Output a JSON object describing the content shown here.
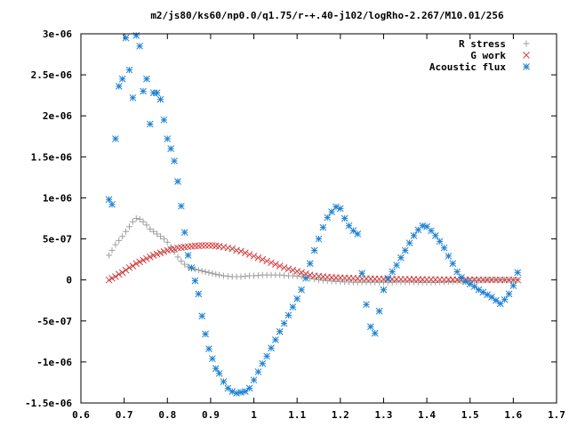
{
  "chart_data": {
    "type": "scatter",
    "title": "m2/js80/ks60/np0.0/q1.75/r-+.40-j102/logRho-2.267/M10.01/256",
    "xlabel": "",
    "ylabel": "",
    "xlim": [
      0.6,
      1.7
    ],
    "ylim": [
      -1.5e-06,
      3e-06
    ],
    "grid": false,
    "legend_placement": "top-right",
    "x_ticks": [
      0.6,
      0.7,
      0.8,
      0.9,
      1.0,
      1.1,
      1.2,
      1.3,
      1.4,
      1.5,
      1.6,
      1.7
    ],
    "x_tick_labels": [
      "0.6",
      "0.7",
      "0.8",
      "0.9",
      "1",
      "1.1",
      "1.2",
      "1.3",
      "1.4",
      "1.5",
      "1.6",
      "1.7"
    ],
    "y_ticks": [
      -1.5e-06,
      -1e-06,
      -5e-07,
      0,
      5e-07,
      1e-06,
      1.5e-06,
      2e-06,
      2.5e-06,
      3e-06
    ],
    "y_tick_labels": [
      "-1.5e-06",
      "-1e-06",
      "-5e-07",
      "0",
      "5e-07",
      "1e-06",
      "1.5e-06",
      "2e-06",
      "2.5e-06",
      "3e-06"
    ],
    "series": [
      {
        "name": "R stress",
        "marker": "plus",
        "color": "#a0a0a0",
        "x": [
          0.665,
          0.672,
          0.68,
          0.688,
          0.696,
          0.704,
          0.712,
          0.72,
          0.728,
          0.736,
          0.744,
          0.752,
          0.76,
          0.768,
          0.776,
          0.784,
          0.792,
          0.8,
          0.808,
          0.816,
          0.824,
          0.832,
          0.84,
          0.848,
          0.856,
          0.864,
          0.872,
          0.88,
          0.888,
          0.896,
          0.904,
          0.912,
          0.92,
          0.93,
          0.94,
          0.95,
          0.96,
          0.97,
          0.98,
          0.99,
          1.0,
          1.01,
          1.02,
          1.03,
          1.04,
          1.05,
          1.06,
          1.07,
          1.08,
          1.09,
          1.1,
          1.11,
          1.12,
          1.13,
          1.14,
          1.15,
          1.16,
          1.17,
          1.18,
          1.19,
          1.2,
          1.21,
          1.22,
          1.23,
          1.24,
          1.25,
          1.26,
          1.27,
          1.28,
          1.29,
          1.3,
          1.31,
          1.32,
          1.33,
          1.34,
          1.35,
          1.36,
          1.37,
          1.38,
          1.39,
          1.4,
          1.41,
          1.42,
          1.43,
          1.44,
          1.45,
          1.46,
          1.47,
          1.48,
          1.49,
          1.5,
          1.51,
          1.52,
          1.53,
          1.54,
          1.55,
          1.56,
          1.57,
          1.58,
          1.59,
          1.6,
          1.61
        ],
        "y": [
          3e-07,
          3.6e-07,
          4.3e-07,
          4.8e-07,
          5.3e-07,
          5.9e-07,
          6.5e-07,
          7.1e-07,
          7.5e-07,
          7.4e-07,
          7.1e-07,
          6.7e-07,
          6.2e-07,
          5.9e-07,
          5.6e-07,
          5.3e-07,
          5e-07,
          4.6e-07,
          4e-07,
          3.4e-07,
          2.8e-07,
          2.3e-07,
          1.9e-07,
          1.6e-07,
          1.4e-07,
          1.3e-07,
          1.2e-07,
          1.1e-07,
          1e-07,
          9e-08,
          8e-08,
          7e-08,
          6e-08,
          5e-08,
          4.5e-08,
          4e-08,
          4e-08,
          4e-08,
          4.5e-08,
          5e-08,
          5e-08,
          5.5e-08,
          6e-08,
          6e-08,
          6e-08,
          6e-08,
          6e-08,
          5.5e-08,
          5e-08,
          5e-08,
          4.5e-08,
          4e-08,
          3e-08,
          2e-08,
          1e-08,
          0.0,
          -5e-09,
          -1e-08,
          -1.5e-08,
          -2e-08,
          -2e-08,
          -2.5e-08,
          -2.5e-08,
          -3e-08,
          -3e-08,
          -3e-08,
          -3e-08,
          -3e-08,
          -3e-08,
          -3e-08,
          -3e-08,
          -3e-08,
          -3e-08,
          -2.5e-08,
          -2.5e-08,
          -2.5e-08,
          -2.5e-08,
          -2.5e-08,
          -3e-08,
          -3e-08,
          -3e-08,
          -3e-08,
          -3e-08,
          -2.5e-08,
          -2.5e-08,
          -2e-08,
          -2e-08,
          -1.5e-08,
          -1.5e-08,
          -1e-08,
          -1e-08,
          -5e-09,
          -5e-09,
          -5e-09,
          0.0,
          0.0,
          0.0,
          0.0,
          0.0,
          0.0,
          0.0,
          0.0
        ]
      },
      {
        "name": "G work",
        "marker": "cross",
        "color": "#d04040",
        "x": [
          0.665,
          0.672,
          0.68,
          0.688,
          0.696,
          0.704,
          0.712,
          0.72,
          0.728,
          0.736,
          0.744,
          0.752,
          0.76,
          0.768,
          0.776,
          0.784,
          0.792,
          0.8,
          0.808,
          0.816,
          0.824,
          0.832,
          0.84,
          0.848,
          0.856,
          0.864,
          0.872,
          0.88,
          0.888,
          0.896,
          0.904,
          0.912,
          0.92,
          0.93,
          0.94,
          0.95,
          0.96,
          0.97,
          0.98,
          0.99,
          1.0,
          1.01,
          1.02,
          1.03,
          1.04,
          1.05,
          1.06,
          1.07,
          1.08,
          1.09,
          1.1,
          1.11,
          1.12,
          1.13,
          1.14,
          1.15,
          1.16,
          1.17,
          1.18,
          1.19,
          1.2,
          1.21,
          1.22,
          1.23,
          1.24,
          1.25,
          1.26,
          1.27,
          1.28,
          1.29,
          1.3,
          1.31,
          1.32,
          1.33,
          1.34,
          1.35,
          1.36,
          1.37,
          1.38,
          1.39,
          1.4,
          1.41,
          1.42,
          1.43,
          1.44,
          1.45,
          1.46,
          1.47,
          1.48,
          1.49,
          1.5,
          1.51,
          1.52,
          1.53,
          1.54,
          1.55,
          1.56,
          1.57,
          1.58,
          1.59,
          1.6,
          1.61
        ],
        "y": [
          0.0,
          2e-08,
          4e-08,
          7e-08,
          9e-08,
          1.2e-07,
          1.5e-07,
          1.7e-07,
          2e-07,
          2.2e-07,
          2.4e-07,
          2.6e-07,
          2.8e-07,
          3e-07,
          3.15e-07,
          3.3e-07,
          3.45e-07,
          3.6e-07,
          3.7e-07,
          3.8e-07,
          3.9e-07,
          3.95e-07,
          4e-07,
          4.05e-07,
          4.1e-07,
          4.15e-07,
          4.15e-07,
          4.2e-07,
          4.2e-07,
          4.2e-07,
          4.2e-07,
          4.15e-07,
          4.1e-07,
          4e-07,
          3.9e-07,
          3.8e-07,
          3.6e-07,
          3.5e-07,
          3.3e-07,
          3.1e-07,
          2.9e-07,
          2.7e-07,
          2.5e-07,
          2.3e-07,
          2.1e-07,
          1.9e-07,
          1.7e-07,
          1.5e-07,
          1.35e-07,
          1.2e-07,
          1.05e-07,
          9e-08,
          7.5e-08,
          6e-08,
          5e-08,
          4.5e-08,
          4e-08,
          3.5e-08,
          3e-08,
          2.8e-08,
          2.6e-08,
          2.4e-08,
          2.2e-08,
          2e-08,
          1.8e-08,
          1.6e-08,
          1.5e-08,
          1.4e-08,
          1.3e-08,
          1.2e-08,
          1.1e-08,
          1e-08,
          1e-08,
          9e-09,
          8e-09,
          8e-09,
          7e-09,
          7e-09,
          6e-09,
          6e-09,
          5e-09,
          5e-09,
          5e-09,
          4e-09,
          4e-09,
          3e-09,
          3e-09,
          3e-09,
          2e-09,
          2e-09,
          2e-09,
          2e-09,
          1e-09,
          1e-09,
          1e-09,
          1e-09,
          1e-09,
          0.0,
          0.0,
          0.0,
          0.0,
          0.0
        ]
      },
      {
        "name": "Acoustic flux",
        "marker": "star",
        "color": "#1e82d2",
        "x": [
          0.665,
          0.672,
          0.68,
          0.688,
          0.696,
          0.704,
          0.712,
          0.72,
          0.728,
          0.736,
          0.744,
          0.752,
          0.76,
          0.768,
          0.776,
          0.784,
          0.792,
          0.8,
          0.808,
          0.816,
          0.824,
          0.832,
          0.84,
          0.848,
          0.856,
          0.864,
          0.872,
          0.88,
          0.888,
          0.896,
          0.904,
          0.912,
          0.92,
          0.93,
          0.94,
          0.95,
          0.96,
          0.97,
          0.98,
          0.99,
          1.0,
          1.01,
          1.02,
          1.03,
          1.04,
          1.05,
          1.06,
          1.07,
          1.08,
          1.09,
          1.1,
          1.11,
          1.12,
          1.13,
          1.14,
          1.15,
          1.16,
          1.17,
          1.18,
          1.19,
          1.2,
          1.21,
          1.22,
          1.23,
          1.24,
          1.25,
          1.26,
          1.27,
          1.28,
          1.29,
          1.3,
          1.31,
          1.32,
          1.33,
          1.34,
          1.35,
          1.36,
          1.37,
          1.38,
          1.39,
          1.4,
          1.41,
          1.42,
          1.43,
          1.44,
          1.45,
          1.46,
          1.47,
          1.48,
          1.49,
          1.5,
          1.51,
          1.52,
          1.53,
          1.54,
          1.55,
          1.56,
          1.57,
          1.58,
          1.59,
          1.6,
          1.61
        ],
        "y": [
          9.8e-07,
          9.2e-07,
          1.72e-06,
          2.36e-06,
          2.45e-06,
          2.95e-06,
          2.56e-06,
          2.22e-06,
          2.98e-06,
          2.85e-06,
          2.3e-06,
          2.45e-06,
          1.9e-06,
          2.28e-06,
          2.28e-06,
          2.2e-06,
          1.95e-06,
          1.72e-06,
          1.6e-06,
          1.45e-06,
          1.2e-06,
          9e-07,
          5.8e-07,
          3e-07,
          1.5e-07,
          -1e-08,
          -1.7e-07,
          -4.4e-07,
          -6.6e-07,
          -8.4e-07,
          -9.6e-07,
          -1.08e-06,
          -1.14e-06,
          -1.24e-06,
          -1.32e-06,
          -1.36e-06,
          -1.38e-06,
          -1.37e-06,
          -1.36e-06,
          -1.32e-06,
          -1.22e-06,
          -1.12e-06,
          -1.02e-06,
          -9.3e-07,
          -8.3e-07,
          -7.3e-07,
          -6.3e-07,
          -5.3e-07,
          -4.3e-07,
          -3.3e-07,
          -2.3e-07,
          -1.2e-07,
          2e-08,
          2e-07,
          3.6e-07,
          5e-07,
          6.4e-07,
          7.6e-07,
          8.3e-07,
          8.9e-07,
          8.7e-07,
          7.5e-07,
          6.6e-07,
          6e-07,
          5.6e-07,
          8e-08,
          -3e-07,
          -5.7e-07,
          -6.5e-07,
          -3.8e-07,
          -1.2e-07,
          2e-08,
          1e-07,
          1.8e-07,
          2.7e-07,
          3.6e-07,
          4.5e-07,
          5.4e-07,
          6.1e-07,
          6.6e-07,
          6.5e-07,
          6e-07,
          5.4e-07,
          4.7e-07,
          3.9e-07,
          2.9e-07,
          2e-07,
          1e-07,
          3e-08,
          -2e-08,
          -5e-08,
          -8e-08,
          -1.2e-07,
          -1.5e-07,
          -1.8e-07,
          -2.1e-07,
          -2.5e-07,
          -2.9e-07,
          -2.4e-07,
          -1.7e-07,
          -7e-08,
          9e-08
        ]
      }
    ]
  }
}
